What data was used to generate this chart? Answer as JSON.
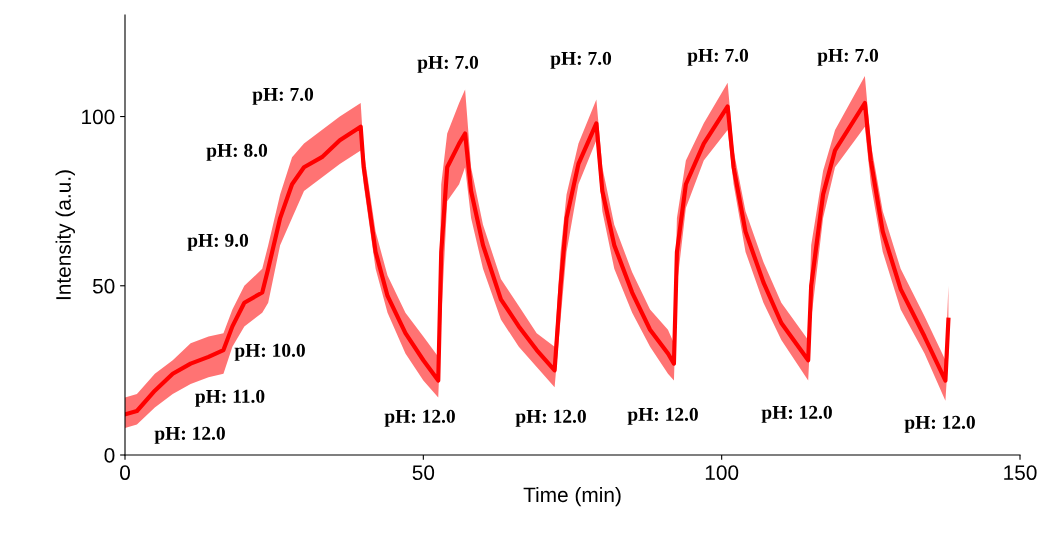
{
  "chart_data": {
    "type": "line",
    "xlabel": "Time (min)",
    "ylabel": "Intensity (a.u.)",
    "xlim": [
      0,
      150
    ],
    "ylim": [
      0,
      130
    ],
    "xticks": [
      0,
      50,
      100,
      150
    ],
    "yticks": [
      0,
      50,
      100
    ],
    "grid": false,
    "legend": false,
    "marker": "none",
    "line_style": "solid",
    "series": [
      {
        "color": "#ff0000",
        "x": [
          0,
          2,
          5,
          8,
          11,
          14,
          16.5,
          18,
          20,
          23,
          24,
          26,
          28,
          30,
          33,
          36,
          39.5,
          40,
          42,
          44,
          47,
          50,
          52.5,
          53,
          54,
          56,
          57,
          58,
          60,
          63,
          66,
          69,
          72,
          73,
          74,
          76,
          79,
          80,
          82,
          85,
          88,
          91,
          92,
          92.5,
          94,
          97,
          101,
          102,
          104,
          107,
          110,
          114.5,
          115,
          117,
          119,
          124,
          125,
          127,
          130,
          134,
          137.5,
          138
        ],
        "values": [
          12,
          13,
          19,
          24,
          27,
          29,
          31,
          38,
          45,
          48,
          55,
          70,
          80,
          85,
          88,
          93,
          97,
          85,
          60,
          47,
          36,
          28,
          22,
          60,
          85,
          92,
          95,
          78,
          62,
          46,
          38,
          31,
          25,
          50,
          70,
          86,
          98,
          78,
          62,
          48,
          37,
          30,
          27,
          60,
          80,
          92,
          103,
          85,
          66,
          51,
          39,
          28,
          50,
          77,
          90,
          104,
          87,
          66,
          49,
          35,
          22,
          40
        ],
        "lower": [
          8,
          9,
          14,
          18,
          21,
          23,
          24,
          32,
          38,
          42,
          45,
          62,
          70,
          78,
          82,
          86,
          90,
          80,
          55,
          42,
          30,
          22,
          17,
          40,
          75,
          80,
          85,
          70,
          55,
          40,
          32,
          26,
          20,
          40,
          60,
          80,
          93,
          72,
          55,
          42,
          32,
          24,
          22,
          50,
          73,
          87,
          96,
          80,
          60,
          45,
          34,
          22,
          40,
          70,
          85,
          97,
          80,
          60,
          43,
          30,
          16,
          30
        ],
        "upper": [
          17,
          18,
          24,
          28,
          33,
          35,
          36,
          43,
          50,
          55,
          62,
          77,
          88,
          92,
          96,
          100,
          104,
          90,
          66,
          53,
          42,
          35,
          29,
          80,
          95,
          104,
          108,
          85,
          68,
          52,
          44,
          36,
          32,
          60,
          77,
          92,
          105,
          85,
          68,
          54,
          43,
          37,
          33,
          70,
          87,
          98,
          110,
          90,
          72,
          57,
          45,
          34,
          62,
          84,
          96,
          112,
          92,
          72,
          55,
          41,
          28,
          50
        ]
      }
    ],
    "annotations": [
      "pH: 12.0",
      "pH: 11.0",
      "pH: 10.0",
      "pH: 9.0",
      "pH: 8.0",
      "pH: 7.0",
      "pH: 12.0",
      "pH: 7.0",
      "pH: 12.0",
      "pH: 7.0",
      "pH: 12.0",
      "pH: 7.0",
      "pH: 12.0",
      "pH: 7.0",
      "pH: 12.0"
    ]
  }
}
